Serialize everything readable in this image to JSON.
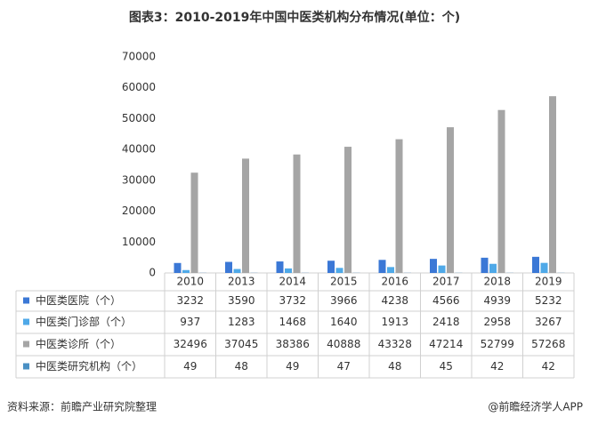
{
  "chart_data": {
    "type": "bar",
    "title": "图表3：2010-2019年中国中医类机构分布情况(单位：个)",
    "categories": [
      "2010",
      "2013",
      "2014",
      "2015",
      "2016",
      "2017",
      "2018",
      "2019"
    ],
    "series": [
      {
        "name": "中医类医院（个）",
        "color": "#3b78d6",
        "values": [
          3232,
          3590,
          3732,
          3966,
          4238,
          4566,
          4939,
          5232
        ]
      },
      {
        "name": "中医类门诊部（个）",
        "color": "#4fa9e8",
        "values": [
          937,
          1283,
          1468,
          1640,
          1913,
          2418,
          2958,
          3267
        ]
      },
      {
        "name": "中医类诊所（个）",
        "color": "#a5a5a5",
        "values": [
          32496,
          37045,
          38386,
          40888,
          43328,
          47214,
          52799,
          57268
        ]
      },
      {
        "name": "中医类研究机构（个）",
        "color": "#4a90c4",
        "values": [
          49,
          48,
          49,
          47,
          48,
          45,
          42,
          42
        ]
      }
    ],
    "ylim": [
      0,
      70000
    ],
    "yticks": [
      0,
      10000,
      20000,
      30000,
      40000,
      50000,
      60000,
      70000
    ],
    "source": "资料来源：前瞻产业研究院整理",
    "credit": "@前瞻经济学人APP"
  }
}
